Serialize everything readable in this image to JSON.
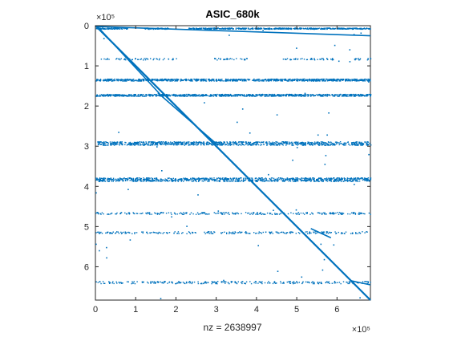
{
  "chart_data": {
    "type": "scatter",
    "title": "ASIC_680k",
    "xlabel": "nz = 2638997",
    "ylabel": "",
    "x_exponent_label": "×10⁵",
    "y_exponent_label": "×10⁵",
    "x_ticks": [
      0,
      1,
      2,
      3,
      4,
      5,
      6
    ],
    "y_ticks": [
      0,
      1,
      2,
      3,
      4,
      5,
      6
    ],
    "x_tick_labels": [
      "0",
      "1",
      "2",
      "3",
      "4",
      "5",
      "6"
    ],
    "y_tick_labels": [
      "0",
      "1",
      "2",
      "3",
      "4",
      "5",
      "6"
    ],
    "xlim": [
      0,
      6.83
    ],
    "ylim": [
      0,
      6.83
    ],
    "y_reversed": true,
    "marker_color": "#0072BD",
    "nz": 2638997,
    "diagonal": [
      [
        0,
        0
      ],
      [
        6.83,
        6.83
      ]
    ],
    "secondary_lines": [
      [
        [
          0,
          0.02
        ],
        [
          6.83,
          0.25
        ]
      ],
      [
        [
          1.55,
          1.67
        ],
        [
          3.05,
          2.98
        ]
      ],
      [
        [
          5.35,
          5.05
        ],
        [
          5.85,
          5.28
        ]
      ],
      [
        [
          6.35,
          6.35
        ],
        [
          6.83,
          6.45
        ]
      ],
      [
        [
          0.05,
          0.02
        ],
        [
          1.6,
          1.7
        ]
      ]
    ],
    "row_bands": [
      {
        "y": 0.06,
        "density": 0.9,
        "thickness": 0.03,
        "gaps": [
          [
            0.8,
            1.2
          ],
          [
            1.8,
            2.3
          ]
        ]
      },
      {
        "y": 0.82,
        "density": 0.4,
        "thickness": 0.04,
        "gaps": [
          [
            0,
            0.1
          ],
          [
            2.0,
            2.9
          ],
          [
            3.8,
            4.6
          ],
          [
            5.9,
            6.4
          ]
        ]
      },
      {
        "y": 1.34,
        "density": 1.0,
        "thickness": 0.05,
        "gaps": []
      },
      {
        "y": 1.72,
        "density": 1.0,
        "thickness": 0.05,
        "gaps": []
      },
      {
        "y": 2.92,
        "density": 1.0,
        "thickness": 0.09,
        "gaps": []
      },
      {
        "y": 3.82,
        "density": 1.0,
        "thickness": 0.09,
        "gaps": []
      },
      {
        "y": 4.66,
        "density": 0.5,
        "thickness": 0.05,
        "gaps": []
      },
      {
        "y": 5.14,
        "density": 0.45,
        "thickness": 0.05,
        "gaps": []
      },
      {
        "y": 6.38,
        "density": 0.55,
        "thickness": 0.06,
        "gaps": []
      }
    ]
  }
}
